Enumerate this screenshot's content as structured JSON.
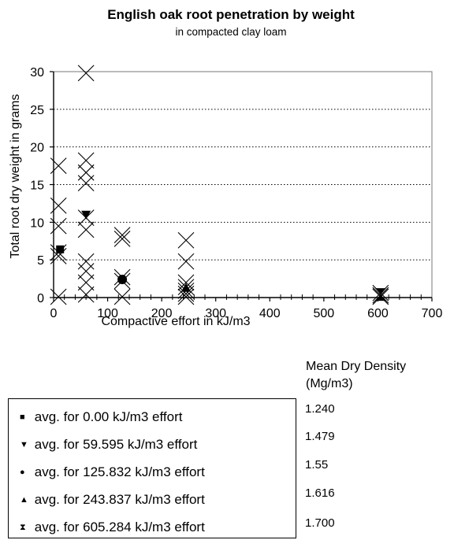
{
  "chart_data": {
    "type": "scatter",
    "title": "English oak root penetration by weight",
    "subtitle": "in compacted clay loam",
    "xlabel": "Compactive effort in kJ/m3",
    "ylabel": "Total root dry weight in grams",
    "xlim": [
      0,
      700
    ],
    "ylim": [
      0,
      30
    ],
    "xticks": [
      "0",
      "100",
      "200",
      "300",
      "400",
      "500",
      "600",
      "700"
    ],
    "yticks": [
      "0",
      "5",
      "10",
      "15",
      "20",
      "25",
      "30"
    ],
    "grid": "horizontal dotted",
    "series": [
      {
        "marker": "x",
        "points": [
          [
            9,
            17.5
          ],
          [
            9,
            12.2
          ],
          [
            9,
            9.5
          ],
          [
            9,
            6.0
          ],
          [
            9,
            5.5
          ],
          [
            9,
            0.1
          ],
          [
            60,
            29.8
          ],
          [
            60,
            18.2
          ],
          [
            60,
            16.6
          ],
          [
            60,
            15.2
          ],
          [
            60,
            10.6
          ],
          [
            60,
            9.0
          ],
          [
            60,
            4.8
          ],
          [
            60,
            3.5
          ],
          [
            60,
            2.0
          ],
          [
            60,
            0.4
          ],
          [
            127,
            8.3
          ],
          [
            127,
            7.8
          ],
          [
            127,
            2.7
          ],
          [
            127,
            2.2
          ],
          [
            127,
            0.1
          ],
          [
            245,
            7.6
          ],
          [
            245,
            4.8
          ],
          [
            245,
            2.0
          ],
          [
            245,
            1.4
          ],
          [
            245,
            0.9
          ],
          [
            245,
            0.5
          ],
          [
            245,
            0.1
          ],
          [
            605,
            0.6
          ],
          [
            605,
            0.3
          ],
          [
            605,
            0.1
          ]
        ]
      },
      {
        "name": "avg. for 0.00 kJ/m3 effort",
        "marker": "square",
        "points": [
          [
            12,
            6.4
          ]
        ]
      },
      {
        "name": "avg. for 59.595 kJ/m3 effort",
        "marker": "triangle-down",
        "points": [
          [
            60,
            11.0
          ]
        ]
      },
      {
        "name": "avg. for 125.832 kJ/m3 effort",
        "marker": "circle",
        "points": [
          [
            127,
            2.4
          ]
        ]
      },
      {
        "name": "avg. for 243.837 kJ/m3 effort",
        "marker": "triangle-up",
        "points": [
          [
            245,
            1.3
          ]
        ]
      },
      {
        "name": "avg. for 605.284 kJ/m3 effort",
        "marker": "hourglass",
        "points": [
          [
            605,
            0.4
          ]
        ]
      }
    ],
    "density_table": {
      "header": [
        "Mean Dry Density",
        "(Mg/m3)"
      ],
      "values": [
        "1.240",
        "1.479",
        "1.55",
        "1.616",
        "1.700"
      ]
    }
  }
}
